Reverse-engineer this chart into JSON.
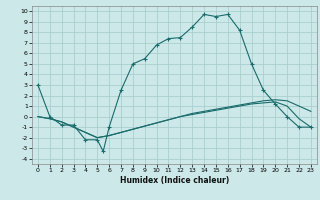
{
  "title": "",
  "xlabel": "Humidex (Indice chaleur)",
  "ylabel": "",
  "background_color": "#cce8e8",
  "grid_color": "#aacece",
  "line_color": "#1a6b6b",
  "xlim": [
    -0.5,
    23.5
  ],
  "ylim": [
    -4.5,
    10.5
  ],
  "xticks": [
    0,
    1,
    2,
    3,
    4,
    5,
    6,
    7,
    8,
    9,
    10,
    11,
    12,
    13,
    14,
    15,
    16,
    17,
    18,
    19,
    20,
    21,
    22,
    23
  ],
  "yticks": [
    -4,
    -3,
    -2,
    -1,
    0,
    1,
    2,
    3,
    4,
    5,
    6,
    7,
    8,
    9,
    10
  ],
  "curve1_x": [
    0,
    1,
    2,
    3,
    4,
    5,
    5.5,
    6,
    7,
    8,
    9,
    10,
    11,
    12,
    13,
    14,
    15,
    16,
    17,
    18,
    19,
    20,
    21,
    22,
    23
  ],
  "curve1_y": [
    3.0,
    0.0,
    -0.8,
    -0.8,
    -2.2,
    -2.2,
    -3.3,
    -1.0,
    2.5,
    5.0,
    5.5,
    6.8,
    7.4,
    7.5,
    8.5,
    9.7,
    9.5,
    9.7,
    8.2,
    5.0,
    2.5,
    1.2,
    0.0,
    -1.0,
    -1.0
  ],
  "curve2_x": [
    0,
    1,
    2,
    3,
    4,
    5,
    6,
    7,
    8,
    9,
    10,
    11,
    12,
    13,
    14,
    15,
    16,
    17,
    18,
    19,
    20,
    21,
    22,
    23
  ],
  "curve2_y": [
    0.0,
    -0.2,
    -0.5,
    -1.0,
    -1.5,
    -2.0,
    -1.8,
    -1.5,
    -1.2,
    -0.9,
    -0.6,
    -0.3,
    0.0,
    0.2,
    0.4,
    0.6,
    0.8,
    1.0,
    1.2,
    1.3,
    1.4,
    1.0,
    -0.2,
    -1.0
  ],
  "curve3_x": [
    0,
    1,
    2,
    3,
    4,
    5,
    6,
    7,
    8,
    9,
    10,
    11,
    12,
    13,
    14,
    15,
    16,
    17,
    18,
    19,
    20,
    21,
    22,
    23
  ],
  "curve3_y": [
    0.0,
    -0.2,
    -0.5,
    -1.0,
    -1.5,
    -2.0,
    -1.8,
    -1.5,
    -1.2,
    -0.9,
    -0.6,
    -0.3,
    0.0,
    0.3,
    0.5,
    0.7,
    0.9,
    1.1,
    1.3,
    1.5,
    1.6,
    1.5,
    1.0,
    0.5
  ]
}
